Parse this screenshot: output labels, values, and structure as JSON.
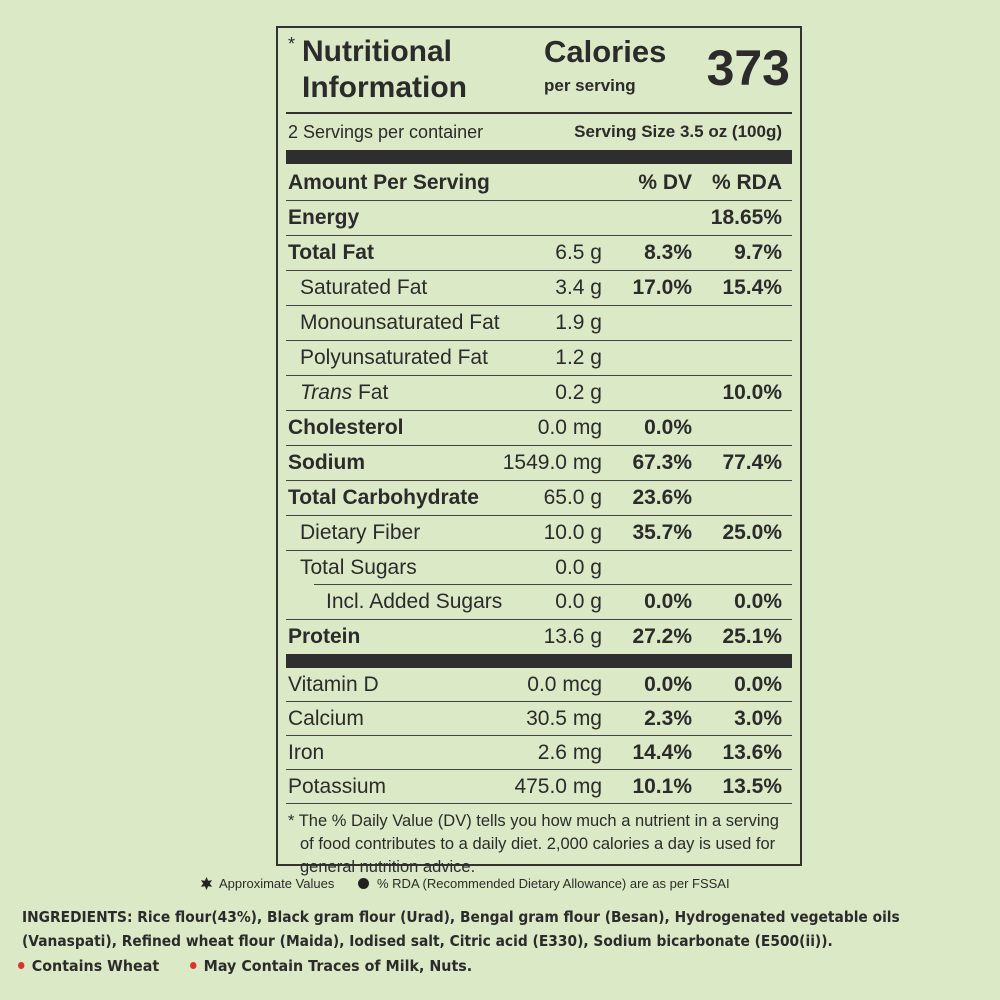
{
  "header": {
    "star": "*",
    "title_line1": "Nutritional",
    "title_line2": "Information",
    "calories_label": "Calories",
    "calories_sub": "per serving",
    "calories_value": "373"
  },
  "serving": {
    "count": "2 Servings per container",
    "size": "Serving Size 3.5 oz (100g)"
  },
  "columns": {
    "amount": "Amount Per Serving",
    "dv": "% DV",
    "rda": "% RDA"
  },
  "nutrients": [
    {
      "name": "Energy",
      "amount": "",
      "dv": "",
      "rda": "18.65%"
    },
    {
      "name": "Total Fat",
      "amount": "6.5 g",
      "dv": "8.3%",
      "rda": "9.7%"
    },
    {
      "name": "Saturated Fat",
      "amount": "3.4 g",
      "dv": "17.0%",
      "rda": "15.4%"
    },
    {
      "name": "Monounsaturated Fat",
      "amount": "1.9 g",
      "dv": "",
      "rda": ""
    },
    {
      "name": "Polyunsaturated Fat",
      "amount": "1.2 g",
      "dv": "",
      "rda": ""
    },
    {
      "name_italic": "Trans",
      "name": " Fat",
      "amount": "0.2 g",
      "dv": "",
      "rda": "10.0%"
    },
    {
      "name": "Cholesterol",
      "amount": "0.0 mg",
      "dv": "0.0%",
      "rda": ""
    },
    {
      "name": "Sodium",
      "amount": "1549.0 mg",
      "dv": "67.3%",
      "rda": "77.4%"
    },
    {
      "name": "Total Carbohydrate",
      "amount": "65.0 g",
      "dv": "23.6%",
      "rda": ""
    },
    {
      "name": "Dietary Fiber",
      "amount": "10.0 g",
      "dv": "35.7%",
      "rda": "25.0%"
    },
    {
      "name": "Total Sugars",
      "amount": "0.0 g",
      "dv": "",
      "rda": ""
    },
    {
      "name": "Incl. Added Sugars",
      "amount": "0.0 g",
      "dv": "0.0%",
      "rda": "0.0%"
    },
    {
      "name": "Protein",
      "amount": "13.6 g",
      "dv": "27.2%",
      "rda": "25.1%"
    }
  ],
  "vitamins": [
    {
      "name": "Vitamin D",
      "amount": "0.0 mcg",
      "dv": "0.0%",
      "rda": "0.0%"
    },
    {
      "name": "Calcium",
      "amount": "30.5 mg",
      "dv": "2.3%",
      "rda": "3.0%"
    },
    {
      "name": "Iron",
      "amount": "2.6 mg",
      "dv": "14.4%",
      "rda": "13.6%"
    },
    {
      "name": "Potassium",
      "amount": "475.0 mg",
      "dv": "10.1%",
      "rda": "13.5%"
    }
  ],
  "footnote": {
    "line1": "* The % Daily Value (DV) tells you how much a nutrient in a serving",
    "line2": "of food contributes to a daily diet. 2,000 calories a day is used for",
    "line3": "general nutrition advice."
  },
  "legend": {
    "star_icon": "six-point-star",
    "approx": "Approximate Values",
    "rda": "% RDA (Recommended Dietary Allowance) are as per FSSAI"
  },
  "ingredients": "INGREDIENTS: Rice flour(43%), Black gram flour (Urad), Bengal gram flour (Besan), Hydrogenated vegetable oils (Vanaspati), Refined wheat flour (Maida), Iodised salt, Citric acid (E330), Sodium bicarbonate (E500(ii)).",
  "allergens": [
    "Contains Wheat",
    "May Contain Traces of Milk, Nuts."
  ],
  "colors": {
    "background": "#dbe9c6",
    "allergen_dot": "#d9332b",
    "text": "#2b2b2b"
  }
}
